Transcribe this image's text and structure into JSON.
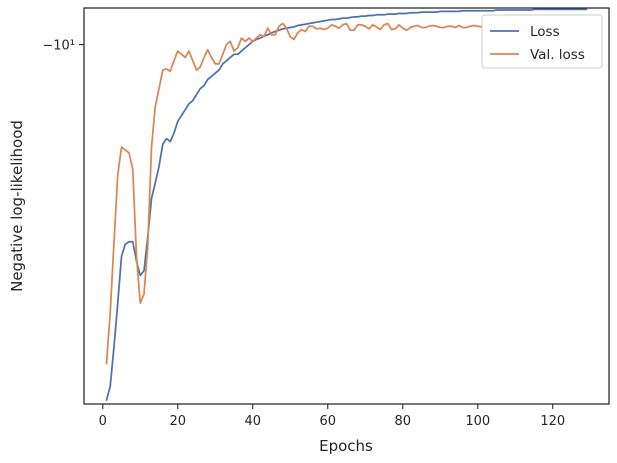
{
  "chart_data": {
    "type": "line",
    "title": "",
    "xlabel": "Epochs",
    "ylabel": "Negative log-likelihood",
    "xlim": [
      -5,
      135
    ],
    "xticks": [
      0,
      20,
      40,
      60,
      80,
      100,
      120
    ],
    "xtick_labels": [
      "0",
      "20",
      "40",
      "60",
      "80",
      "100",
      "120"
    ],
    "yscale": "symlog",
    "ylim": [
      -17.2,
      -9.45
    ],
    "yticks": [
      -10
    ],
    "ytick_labels": [
      "−10¹"
    ],
    "grid": false,
    "legend_position": "top-right",
    "series": [
      {
        "name": "Loss",
        "color": "#4c72b0",
        "x": [
          1,
          2,
          3,
          4,
          5,
          6,
          7,
          8,
          9,
          10,
          11,
          12,
          13,
          14,
          15,
          16,
          17,
          18,
          19,
          20,
          21,
          22,
          23,
          24,
          25,
          26,
          27,
          28,
          29,
          30,
          31,
          32,
          33,
          34,
          35,
          36,
          37,
          38,
          39,
          40,
          41,
          42,
          43,
          44,
          45,
          46,
          47,
          48,
          49,
          50,
          51,
          52,
          53,
          54,
          55,
          56,
          57,
          58,
          59,
          60,
          61,
          62,
          63,
          64,
          65,
          66,
          67,
          68,
          69,
          70,
          71,
          72,
          73,
          74,
          75,
          76,
          77,
          78,
          79,
          80,
          81,
          82,
          83,
          84,
          85,
          86,
          87,
          88,
          89,
          90,
          91,
          92,
          93,
          94,
          95,
          96,
          97,
          98,
          99,
          100,
          101,
          102,
          103,
          104,
          105,
          106,
          106,
          107,
          108,
          109,
          110,
          111,
          112,
          113,
          114,
          115,
          116,
          117,
          118,
          119,
          120,
          121,
          122,
          123,
          124,
          125,
          126,
          127,
          128,
          129
        ],
        "y": [
          -17.1,
          -16.75,
          -15.8,
          -14.8,
          -13.8,
          -13.55,
          -13.5,
          -13.5,
          -13.9,
          -14.2,
          -14.1,
          -13.4,
          -12.65,
          -12.35,
          -12.05,
          -11.65,
          -11.55,
          -11.6,
          -11.45,
          -11.25,
          -11.15,
          -11.05,
          -10.95,
          -10.9,
          -10.8,
          -10.7,
          -10.65,
          -10.55,
          -10.5,
          -10.45,
          -10.4,
          -10.3,
          -10.25,
          -10.2,
          -10.15,
          -10.15,
          -10.1,
          -10.05,
          -10.0,
          -9.95,
          -9.92,
          -9.9,
          -9.87,
          -9.85,
          -9.82,
          -9.8,
          -9.78,
          -9.76,
          -9.75,
          -9.74,
          -9.73,
          -9.71,
          -9.7,
          -9.69,
          -9.68,
          -9.67,
          -9.66,
          -9.65,
          -9.64,
          -9.63,
          -9.62,
          -9.62,
          -9.61,
          -9.6,
          -9.6,
          -9.59,
          -9.58,
          -9.58,
          -9.57,
          -9.57,
          -9.56,
          -9.56,
          -9.55,
          -9.55,
          -9.55,
          -9.54,
          -9.54,
          -9.54,
          -9.53,
          -9.53,
          -9.53,
          -9.52,
          -9.52,
          -9.52,
          -9.51,
          -9.51,
          -9.51,
          -9.51,
          -9.51,
          -9.5,
          -9.5,
          -9.5,
          -9.5,
          -9.5,
          -9.5,
          -9.49,
          -9.49,
          -9.49,
          -9.49,
          -9.49,
          -9.49,
          -9.49,
          -9.49,
          -9.49,
          -9.48,
          -9.48,
          -9.48,
          -9.48,
          -9.48,
          -9.48,
          -9.48,
          -9.48,
          -9.48,
          -9.48,
          -9.48,
          -9.47,
          -9.47,
          -9.47,
          -9.47,
          -9.47,
          -9.47,
          -9.47,
          -9.47,
          -9.47,
          -9.47,
          -9.47,
          -9.47,
          -9.47,
          -9.47,
          -9.47
        ]
      },
      {
        "name": "Val. loss",
        "color": "#dd8452",
        "x": [
          1,
          2,
          3,
          4,
          5,
          6,
          7,
          8,
          9,
          10,
          11,
          12,
          13,
          14,
          15,
          16,
          17,
          18,
          19,
          20,
          21,
          22,
          23,
          24,
          25,
          26,
          27,
          28,
          29,
          30,
          31,
          32,
          33,
          34,
          35,
          36,
          37,
          38,
          39,
          40,
          41,
          42,
          43,
          44,
          45,
          46,
          47,
          48,
          49,
          50,
          51,
          52,
          53,
          54,
          55,
          56,
          57,
          58,
          59,
          60,
          61,
          62,
          63,
          64,
          65,
          66,
          67,
          68,
          69,
          70,
          71,
          72,
          73,
          74,
          75,
          76,
          77,
          78,
          79,
          80,
          81,
          82,
          83,
          84,
          85,
          86,
          87,
          88,
          89,
          90,
          91,
          92,
          93,
          94,
          95,
          96,
          97,
          98,
          99,
          100,
          101,
          102,
          103,
          104,
          105,
          106,
          107,
          108,
          109,
          110,
          111,
          112,
          113,
          114,
          115,
          116,
          117,
          118,
          119,
          120,
          121,
          122,
          123,
          124,
          125,
          126,
          127,
          128,
          129
        ],
        "y": [
          -16.2,
          -15.0,
          -13.5,
          -12.2,
          -11.7,
          -11.75,
          -11.8,
          -12.1,
          -13.8,
          -14.8,
          -14.6,
          -13.6,
          -11.7,
          -11.0,
          -10.7,
          -10.4,
          -10.38,
          -10.42,
          -10.25,
          -10.1,
          -10.15,
          -10.2,
          -10.1,
          -10.25,
          -10.4,
          -10.35,
          -10.2,
          -10.08,
          -10.2,
          -10.3,
          -10.3,
          -10.15,
          -10.0,
          -9.95,
          -10.1,
          -10.05,
          -9.9,
          -9.95,
          -9.9,
          -9.95,
          -9.9,
          -9.85,
          -9.88,
          -9.75,
          -9.85,
          -9.85,
          -9.72,
          -9.68,
          -9.75,
          -9.88,
          -9.92,
          -9.82,
          -9.77,
          -9.8,
          -9.72,
          -9.72,
          -9.76,
          -9.75,
          -9.77,
          -9.75,
          -9.7,
          -9.72,
          -9.75,
          -9.7,
          -9.68,
          -9.78,
          -9.78,
          -9.7,
          -9.7,
          -9.72,
          -9.76,
          -9.7,
          -9.73,
          -9.77,
          -9.7,
          -9.68,
          -9.77,
          -9.76,
          -9.7,
          -9.75,
          -9.78,
          -9.74,
          -9.72,
          -9.71,
          -9.74,
          -9.74,
          -9.72,
          -9.71,
          -9.72,
          -9.74,
          -9.74,
          -9.72,
          -9.72,
          -9.74,
          -9.71,
          -9.74,
          -9.74,
          -9.72,
          -9.71,
          -9.72,
          -9.73,
          -9.71,
          -9.71,
          -9.73,
          -9.69,
          -9.72,
          -9.72,
          -9.71,
          -9.72,
          -9.71,
          -9.73,
          -9.71,
          -9.71,
          -9.72,
          -9.72,
          -9.72,
          -9.71,
          -9.72,
          -9.72,
          -9.72,
          -9.72,
          -9.71,
          -9.72,
          -9.72,
          -9.71,
          -9.72,
          -9.71,
          -9.7,
          -9.72
        ]
      }
    ]
  }
}
